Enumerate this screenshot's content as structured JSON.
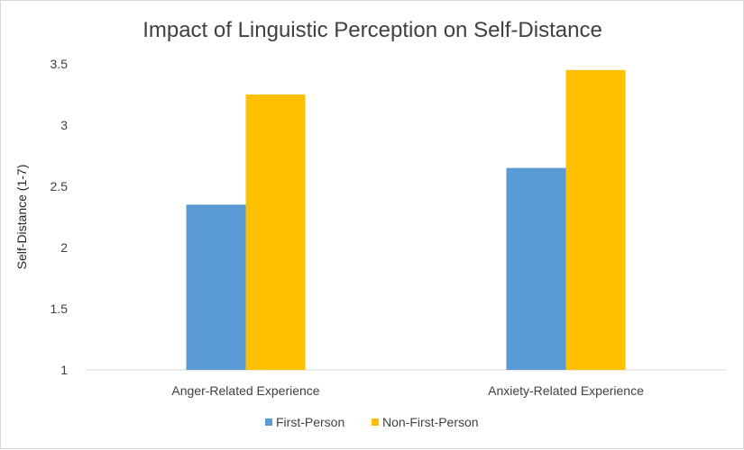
{
  "chart_data": {
    "type": "bar",
    "title": "Impact of Linguistic Perception on Self-Distance",
    "xlabel": "",
    "ylabel": "Self-Distance (1-7)",
    "categories": [
      "Anger-Related Experience",
      "Anxiety-Related Experience"
    ],
    "series": [
      {
        "name": "First-Person",
        "color": "#5b9bd5",
        "values": [
          2.35,
          2.65
        ]
      },
      {
        "name": "Non-First-Person",
        "color": "#ffc000",
        "values": [
          3.25,
          3.45
        ]
      }
    ],
    "ylim": [
      1,
      3.5
    ],
    "yticks": [
      "1",
      "1.5",
      "2",
      "2.5",
      "3",
      "3.5"
    ],
    "grid": false,
    "legend": "bottom"
  }
}
